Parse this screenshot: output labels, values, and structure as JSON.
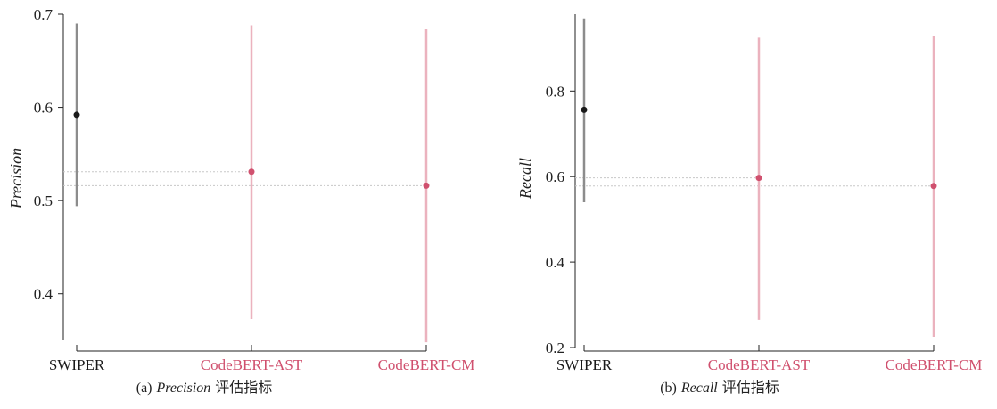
{
  "chart_data": [
    {
      "type": "scatter",
      "subtitle_prefix": "(a)",
      "subtitle_metric": "Precision",
      "subtitle_suffix": "评估指标",
      "ylabel": "Precision",
      "xlabel": "",
      "ylim": [
        0.35,
        0.7
      ],
      "yticks": [
        "0.4",
        "0.5",
        "0.6",
        "0.7"
      ],
      "grid": false,
      "categories": [
        "SWIPER",
        "CodeBERT-AST",
        "CodeBERT-CM"
      ],
      "points": [
        {
          "name": "SWIPER",
          "mean": 0.592,
          "low": 0.494,
          "high": 0.69,
          "color": "#1a1a1a",
          "bar_color": "#8c8c8c"
        },
        {
          "name": "CodeBERT-AST",
          "mean": 0.531,
          "low": 0.373,
          "high": 0.688,
          "color": "#d0506e",
          "bar_color": "#ebb2be"
        },
        {
          "name": "CodeBERT-CM",
          "mean": 0.516,
          "low": 0.348,
          "high": 0.684,
          "color": "#d0506e",
          "bar_color": "#ebb2be"
        }
      ],
      "label_colors": [
        "#1a1a1a",
        "#d0506e",
        "#d0506e"
      ]
    },
    {
      "type": "scatter",
      "subtitle_prefix": "(b)",
      "subtitle_metric": "Recall",
      "subtitle_suffix": "评估指标",
      "ylabel": "Recall",
      "xlabel": "",
      "ylim": [
        0.2,
        0.98
      ],
      "yticks": [
        "0.2",
        "0.4",
        "0.6",
        "0.8"
      ],
      "grid": false,
      "categories": [
        "SWIPER",
        "CodeBERT-AST",
        "CodeBERT-CM"
      ],
      "points": [
        {
          "name": "SWIPER",
          "mean": 0.756,
          "low": 0.54,
          "high": 0.97,
          "color": "#1a1a1a",
          "bar_color": "#8c8c8c"
        },
        {
          "name": "CodeBERT-AST",
          "mean": 0.597,
          "low": 0.265,
          "high": 0.925,
          "color": "#d0506e",
          "bar_color": "#ebb2be"
        },
        {
          "name": "CodeBERT-CM",
          "mean": 0.578,
          "low": 0.225,
          "high": 0.93,
          "color": "#d0506e",
          "bar_color": "#ebb2be"
        }
      ],
      "label_colors": [
        "#1a1a1a",
        "#d0506e",
        "#d0506e"
      ]
    }
  ]
}
